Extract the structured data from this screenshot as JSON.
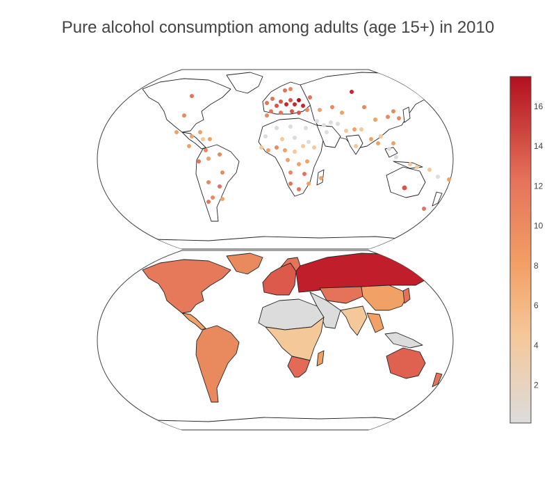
{
  "title": "Pure alcohol consumption among adults (age 15+) in 2010",
  "colorbar": {
    "ticks": [
      2,
      4,
      6,
      8,
      10,
      12,
      14,
      16
    ],
    "min": 0.1,
    "max": 17.5,
    "colorscale": [
      "#dcdcdc",
      "#f5c89a",
      "#f2a166",
      "#e5735a",
      "#b2101f"
    ]
  },
  "maps": [
    {
      "name": "bubble-map",
      "type": "scattergeo",
      "projection": "robinson"
    },
    {
      "name": "choropleth-map",
      "type": "choropleth",
      "projection": "robinson"
    }
  ],
  "chart_data": {
    "type": "map",
    "title": "Pure alcohol consumption among adults (age 15+) in 2010",
    "regions": [
      {
        "name": "north-america",
        "value": 9.8
      },
      {
        "name": "greenland",
        "value": 9.2
      },
      {
        "name": "central-america",
        "value": 7.6
      },
      {
        "name": "south-america",
        "value": 8.9
      },
      {
        "name": "western-europe",
        "value": 11.5
      },
      {
        "name": "eastern-europe-russia",
        "value": 15.8
      },
      {
        "name": "scandinavia",
        "value": 10.2
      },
      {
        "name": "north-africa",
        "value": 0.5
      },
      {
        "name": "sub-saharan-africa",
        "value": 5.0
      },
      {
        "name": "southern-africa",
        "value": 10.5
      },
      {
        "name": "middle-east",
        "value": 0.6
      },
      {
        "name": "central-asia",
        "value": 9.5
      },
      {
        "name": "south-asia",
        "value": 4.3
      },
      {
        "name": "china-mongolia",
        "value": 6.6
      },
      {
        "name": "southeast-asia",
        "value": 5.3
      },
      {
        "name": "indonesia",
        "value": 0.6
      },
      {
        "name": "japan-korea",
        "value": 10.0
      },
      {
        "name": "australia",
        "value": 12.2
      },
      {
        "name": "new-zealand",
        "value": 10.9
      }
    ]
  }
}
